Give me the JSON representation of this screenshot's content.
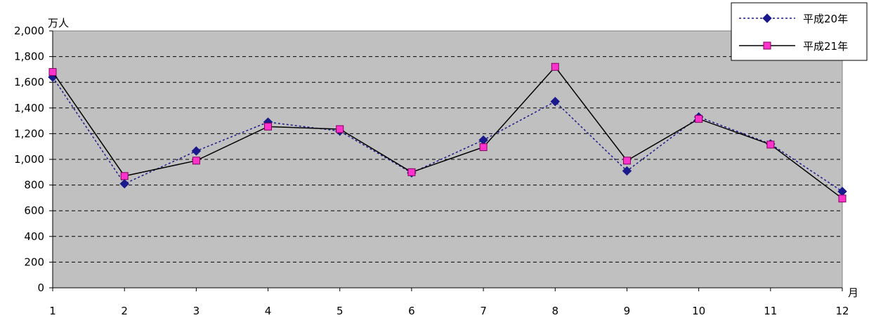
{
  "chart_data": {
    "type": "line",
    "title": "",
    "x_categories": [
      "1",
      "2",
      "3",
      "4",
      "5",
      "6",
      "7",
      "8",
      "9",
      "10",
      "11",
      "12"
    ],
    "x_unit": "月",
    "y_unit": "万人",
    "ylim": [
      0,
      2000
    ],
    "y_ticks": [
      "0",
      "200",
      "400",
      "600",
      "800",
      "1,000",
      "1,200",
      "1,400",
      "1,600",
      "1,800",
      "2,000"
    ],
    "y_tick_values": [
      0,
      200,
      400,
      600,
      800,
      1000,
      1200,
      1400,
      1600,
      1800,
      2000
    ],
    "grid": true,
    "legend_position": "top-right",
    "series": [
      {
        "name": "平成20年",
        "color": "#1a1a8c",
        "line_style": "dotted",
        "marker": "diamond",
        "values": [
          1640,
          810,
          1065,
          1290,
          1220,
          895,
          1150,
          1450,
          910,
          1330,
          1120,
          750
        ]
      },
      {
        "name": "平成21年",
        "color": "#000000",
        "marker_color": "#ff33cc",
        "line_style": "solid",
        "marker": "square",
        "values": [
          1680,
          870,
          990,
          1255,
          1235,
          900,
          1095,
          1720,
          990,
          1315,
          1115,
          695
        ]
      }
    ]
  },
  "colors": {
    "plot_background": "#c0c0c0",
    "gridline": "#000000"
  }
}
